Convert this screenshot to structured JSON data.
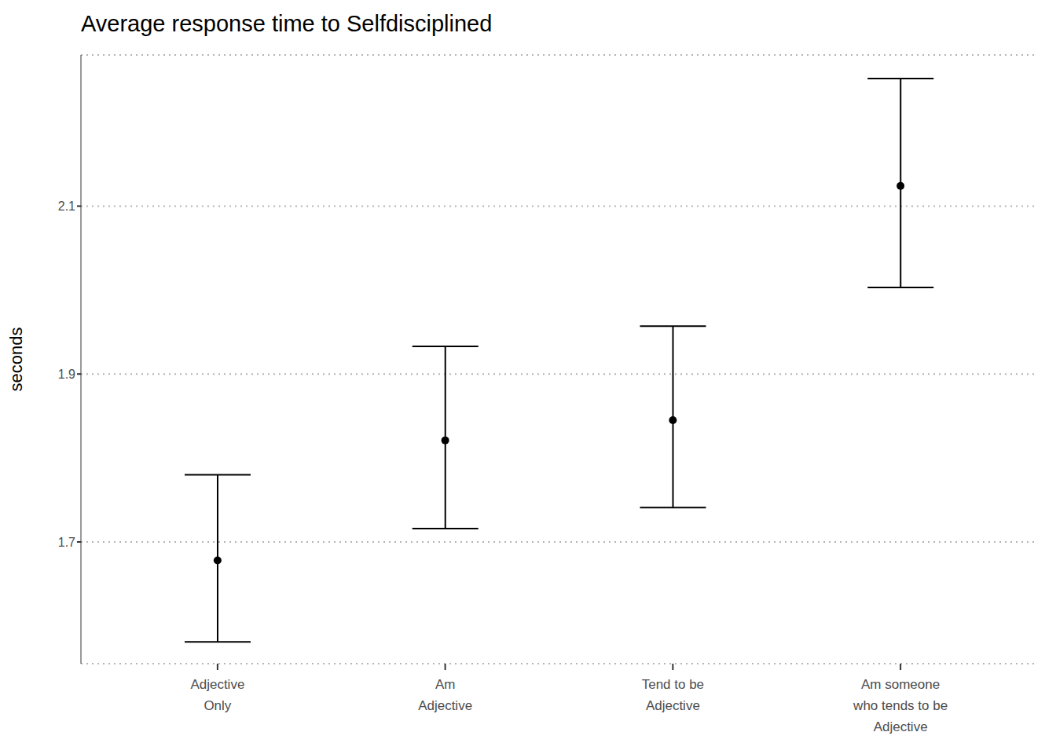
{
  "chart_data": {
    "type": "point",
    "title": "Average response time to Selfdisciplined",
    "y_label": "seconds",
    "categories": [
      "Adjective\nOnly",
      "Am\nAdjective",
      "Tend to be\nAdjective",
      "Am someone\nwho tends to be\nAdjective"
    ],
    "values": [
      1.678,
      1.821,
      1.845,
      2.124
    ],
    "lower": [
      1.581,
      1.716,
      1.741,
      2.003
    ],
    "upper": [
      1.78,
      1.933,
      1.957,
      2.252
    ],
    "color": "#000000",
    "marker": "circle",
    "ylim": [
      1.555,
      2.28
    ],
    "yticks": [
      1.7,
      1.9,
      2.1
    ],
    "grid": true
  }
}
